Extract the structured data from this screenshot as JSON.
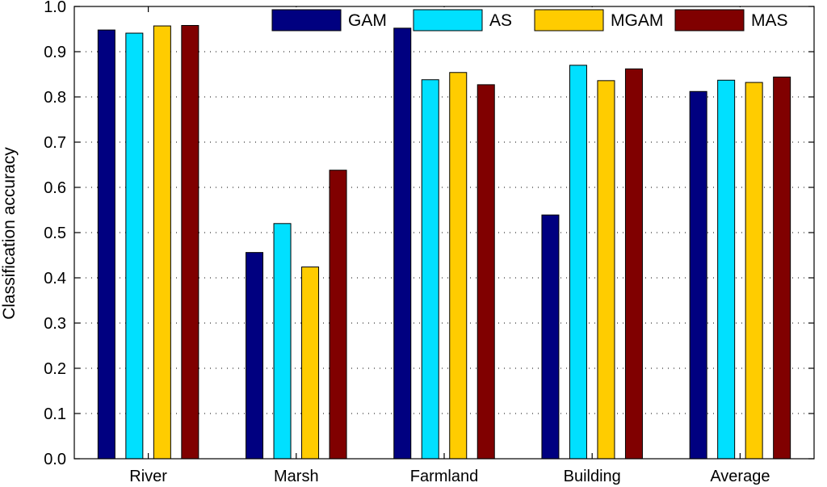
{
  "chart_data": {
    "type": "bar",
    "title": "",
    "xlabel": "",
    "ylabel": "Classification accuracy",
    "ylim": [
      0,
      1.0
    ],
    "yticks": [
      "0.0",
      "0.1",
      "0.2",
      "0.3",
      "0.4",
      "0.5",
      "0.6",
      "0.7",
      "0.8",
      "0.9",
      "1.0"
    ],
    "grid": true,
    "legend_position": "top-right",
    "categories": [
      "River",
      "Marsh",
      "Farmland",
      "Building",
      "Average"
    ],
    "series": [
      {
        "name": "GAM",
        "color": "#000080",
        "values": [
          0.948,
          0.456,
          0.952,
          0.539,
          0.812
        ]
      },
      {
        "name": "AS",
        "color": "#00E0FF",
        "values": [
          0.941,
          0.52,
          0.838,
          0.87,
          0.837
        ]
      },
      {
        "name": "MGAM",
        "color": "#FFCC00",
        "values": [
          0.957,
          0.424,
          0.854,
          0.836,
          0.832
        ]
      },
      {
        "name": "MAS",
        "color": "#800000",
        "values": [
          0.958,
          0.638,
          0.827,
          0.862,
          0.844
        ]
      }
    ]
  }
}
